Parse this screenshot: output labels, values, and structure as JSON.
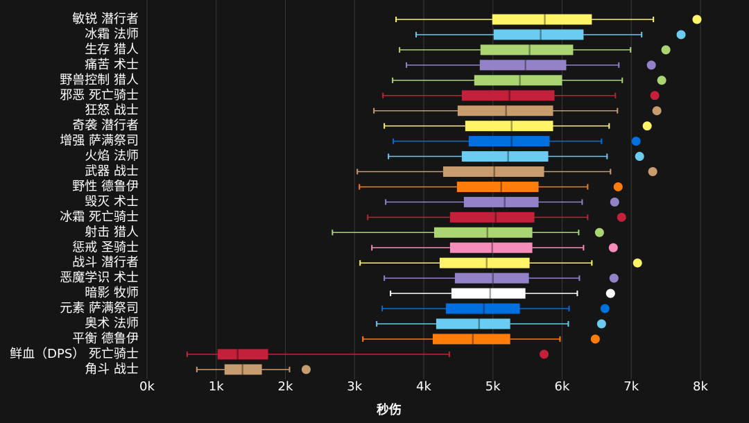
{
  "chart_data": {
    "type": "boxplot",
    "title": "",
    "xlabel": "秒伤",
    "ylabel": "",
    "xlim": [
      0,
      8000
    ],
    "xticks": [
      0,
      1000,
      2000,
      3000,
      4000,
      5000,
      6000,
      7000,
      8000
    ],
    "xtick_labels": [
      "0k",
      "1k",
      "2k",
      "3k",
      "4k",
      "5k",
      "6k",
      "7k",
      "8k"
    ],
    "grid": true,
    "series": [
      {
        "name": "敏锐 潜行者",
        "color": "#fff468",
        "min": 3600,
        "q1": 4990,
        "median": 5750,
        "q3": 6430,
        "max": 7320,
        "outlier": 7950
      },
      {
        "name": "冰霜 法师",
        "color": "#69ccf0",
        "min": 3890,
        "q1": 5010,
        "median": 5690,
        "q3": 6310,
        "max": 7150,
        "outlier": 7720
      },
      {
        "name": "生存 猎人",
        "color": "#abd473",
        "min": 3650,
        "q1": 4820,
        "median": 5530,
        "q3": 6160,
        "max": 6990,
        "outlier": 7500
      },
      {
        "name": "痛苦 术士",
        "color": "#9482c9",
        "min": 3750,
        "q1": 4810,
        "median": 5470,
        "q3": 6060,
        "max": 6820,
        "outlier": 7290
      },
      {
        "name": "野兽控制 猎人",
        "color": "#abd473",
        "min": 3550,
        "q1": 4730,
        "median": 5390,
        "q3": 6000,
        "max": 6870,
        "outlier": 7440
      },
      {
        "name": "邪恶 死亡骑士",
        "color": "#c41f3b",
        "min": 3410,
        "q1": 4550,
        "median": 5240,
        "q3": 5890,
        "max": 6770,
        "outlier": 7340
      },
      {
        "name": "狂怒 战士",
        "color": "#c79c6e",
        "min": 3280,
        "q1": 4490,
        "median": 5190,
        "q3": 5870,
        "max": 6800,
        "outlier": 7370
      },
      {
        "name": "奇袭 潜行者",
        "color": "#fff468",
        "min": 3430,
        "q1": 4600,
        "median": 5270,
        "q3": 5870,
        "max": 6680,
        "outlier": 7230
      },
      {
        "name": "增强 萨满祭司",
        "color": "#0070de",
        "min": 3560,
        "q1": 4650,
        "median": 5270,
        "q3": 5820,
        "max": 6570,
        "outlier": 7070
      },
      {
        "name": "火焰 法师",
        "color": "#69ccf0",
        "min": 3490,
        "q1": 4550,
        "median": 5220,
        "q3": 5800,
        "max": 6650,
        "outlier": 7120
      },
      {
        "name": "武器 战士",
        "color": "#c79c6e",
        "min": 3040,
        "q1": 4280,
        "median": 5020,
        "q3": 5740,
        "max": 6700,
        "outlier": 7310
      },
      {
        "name": "野性 德鲁伊",
        "color": "#ff7d0a",
        "min": 3070,
        "q1": 4480,
        "median": 5120,
        "q3": 5660,
        "max": 6370,
        "outlier": 6810
      },
      {
        "name": "毁灭 术士",
        "color": "#9482c9",
        "min": 3450,
        "q1": 4580,
        "median": 5170,
        "q3": 5660,
        "max": 6290,
        "outlier": 6760
      },
      {
        "name": "冰霜 死亡骑士",
        "color": "#c41f3b",
        "min": 3190,
        "q1": 4380,
        "median": 5040,
        "q3": 5600,
        "max": 6370,
        "outlier": 6860
      },
      {
        "name": "射击 猎人",
        "color": "#abd473",
        "min": 2680,
        "q1": 4150,
        "median": 4920,
        "q3": 5570,
        "max": 6240,
        "outlier": 6540
      },
      {
        "name": "惩戒 圣骑士",
        "color": "#f58cba",
        "min": 3250,
        "q1": 4380,
        "median": 4990,
        "q3": 5570,
        "max": 6310,
        "outlier": 6740
      },
      {
        "name": "战斗 潜行者",
        "color": "#fff468",
        "min": 3080,
        "q1": 4230,
        "median": 4910,
        "q3": 5530,
        "max": 6430,
        "outlier": 7090
      },
      {
        "name": "恶魔学识 术士",
        "color": "#9482c9",
        "min": 3430,
        "q1": 4450,
        "median": 5000,
        "q3": 5520,
        "max": 6250,
        "outlier": 6750
      },
      {
        "name": "暗影 牧师",
        "color": "#ffffff",
        "min": 3520,
        "q1": 4400,
        "median": 4960,
        "q3": 5470,
        "max": 6220,
        "outlier": 6700
      },
      {
        "name": "元素 萨满祭司",
        "color": "#0070de",
        "min": 3400,
        "q1": 4320,
        "median": 4870,
        "q3": 5390,
        "max": 6100,
        "outlier": 6620
      },
      {
        "name": "奥术 法师",
        "color": "#69ccf0",
        "min": 3320,
        "q1": 4180,
        "median": 4800,
        "q3": 5250,
        "max": 6090,
        "outlier": 6570
      },
      {
        "name": "平衡 德鲁伊",
        "color": "#ff7d0a",
        "min": 3120,
        "q1": 4130,
        "median": 4710,
        "q3": 5250,
        "max": 5970,
        "outlier": 6480
      },
      {
        "name": "鲜血（DPS） 死亡骑士",
        "color": "#c41f3b",
        "min": 580,
        "q1": 1020,
        "median": 1310,
        "q3": 1750,
        "max": 4370,
        "outlier": 5740
      },
      {
        "name": "角斗 战士",
        "color": "#c79c6e",
        "min": 720,
        "q1": 1120,
        "median": 1380,
        "q3": 1660,
        "max": 2060,
        "outlier": 2300
      }
    ]
  }
}
